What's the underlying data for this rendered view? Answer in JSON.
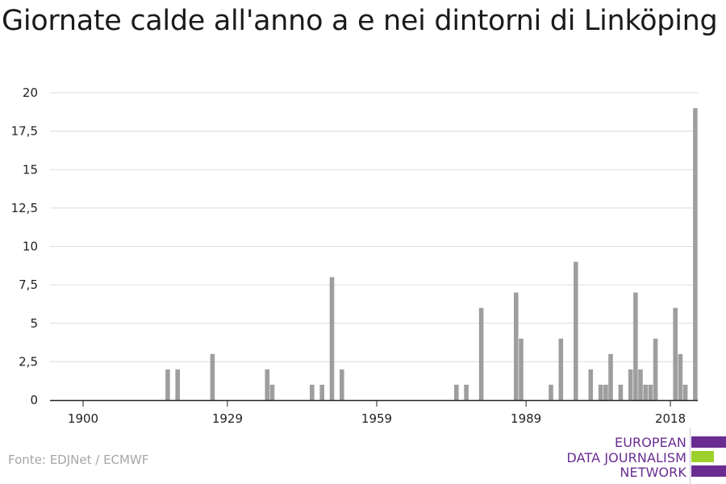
{
  "title": "Giornate calde all'anno a e nei dintorni di Linköping",
  "source": "Fonte: EDJNet / ECMWF",
  "logo": {
    "lines": [
      "EUROPEAN",
      "DATA JOURNALISM",
      "NETWORK"
    ],
    "colors": {
      "purple": "#6a2c91",
      "green": "#9bd12a"
    }
  },
  "chart_data": {
    "type": "bar",
    "title": "Giornate calde all'anno a e nei dintorni di Linköping",
    "xlabel": "",
    "ylabel": "",
    "x_range": [
      1900,
      2019
    ],
    "x_ticks": [
      1900,
      1929,
      1959,
      1989,
      2018
    ],
    "x_tick_labels": [
      "1900",
      "1929",
      "1959",
      "1989",
      "2018"
    ],
    "ylim": [
      0,
      20
    ],
    "y_ticks": [
      0,
      2.5,
      5,
      7.5,
      10,
      12.5,
      15,
      17.5,
      20
    ],
    "y_tick_labels": [
      "0",
      "2,5",
      "5",
      "7,5",
      "10",
      "12,5",
      "15",
      "17,5",
      "20"
    ],
    "grid": "horizontal",
    "bar_color": "#9e9e9e",
    "points": [
      {
        "year": 1917,
        "value": 2
      },
      {
        "year": 1919,
        "value": 2
      },
      {
        "year": 1926,
        "value": 3
      },
      {
        "year": 1937,
        "value": 2
      },
      {
        "year": 1938,
        "value": 1
      },
      {
        "year": 1946,
        "value": 1
      },
      {
        "year": 1948,
        "value": 1
      },
      {
        "year": 1950,
        "value": 8
      },
      {
        "year": 1952,
        "value": 2
      },
      {
        "year": 1975,
        "value": 1
      },
      {
        "year": 1977,
        "value": 1
      },
      {
        "year": 1980,
        "value": 6
      },
      {
        "year": 1987,
        "value": 7
      },
      {
        "year": 1988,
        "value": 4
      },
      {
        "year": 1994,
        "value": 1
      },
      {
        "year": 1996,
        "value": 4
      },
      {
        "year": 1999,
        "value": 9
      },
      {
        "year": 2002,
        "value": 2
      },
      {
        "year": 2004,
        "value": 1
      },
      {
        "year": 2005,
        "value": 1
      },
      {
        "year": 2006,
        "value": 3
      },
      {
        "year": 2008,
        "value": 1
      },
      {
        "year": 2010,
        "value": 2
      },
      {
        "year": 2011,
        "value": 7
      },
      {
        "year": 2012,
        "value": 2
      },
      {
        "year": 2013,
        "value": 1
      },
      {
        "year": 2014,
        "value": 1
      },
      {
        "year": 2015,
        "value": 4
      },
      {
        "year": 2019,
        "value": 6
      },
      {
        "year": 2020,
        "value": 3
      },
      {
        "year": 2021,
        "value": 1
      },
      {
        "year": 2023,
        "value": 19
      }
    ]
  }
}
